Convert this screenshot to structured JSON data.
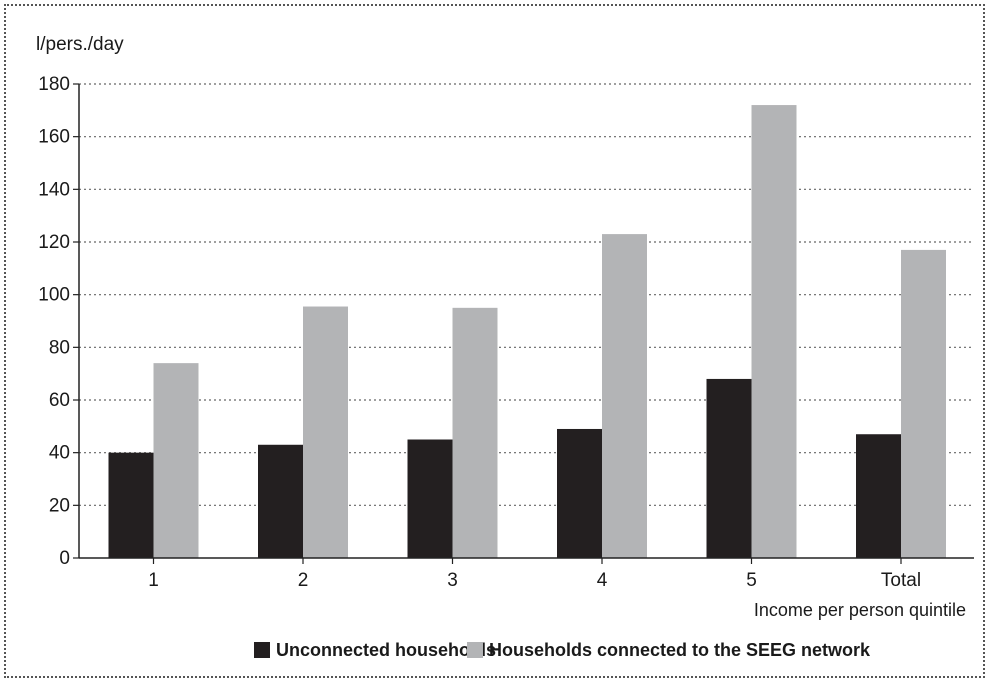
{
  "chart_data": {
    "type": "bar",
    "ylabel": "l/pers./day",
    "xlabel": "Income per person quintile",
    "categories": [
      "1",
      "2",
      "3",
      "4",
      "5",
      "Total"
    ],
    "ylim": [
      0,
      180
    ],
    "yticks": [
      0,
      20,
      40,
      60,
      80,
      100,
      120,
      140,
      160,
      180
    ],
    "grid": true,
    "legend_position": "bottom",
    "series": [
      {
        "name": "Unconnected households",
        "color": "#231f20",
        "values": [
          40,
          43,
          45,
          49,
          68,
          47
        ]
      },
      {
        "name": "Households connected to the SEEG network",
        "color": "#b3b4b6",
        "values": [
          74,
          95.5,
          95,
          123,
          172,
          117
        ]
      }
    ]
  }
}
